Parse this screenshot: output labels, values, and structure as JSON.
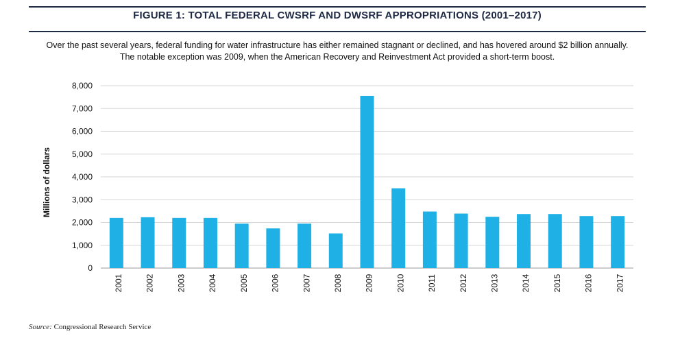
{
  "header": {
    "title": "FIGURE 1: TOTAL FEDERAL CWSRF AND DWSRF APPROPRIATIONS (2001–2017)",
    "subtitle_line1": "Over the past several years, federal funding for water infrastructure has either remained stagnant or declined, and has hovered around $2 billion annually.",
    "subtitle_line2": "The notable exception was 2009, when the American Recovery and Reinvestment Act provided a short-term boost."
  },
  "footer": {
    "source_label": "Source:",
    "source_text": "Congressional Research Service"
  },
  "colors": {
    "bar": "#1fb1e6",
    "grid": "#d6d6d6",
    "rule": "#1f2a44"
  },
  "chart_data": {
    "type": "bar",
    "title": "FIGURE 1: TOTAL FEDERAL CWSRF AND DWSRF APPROPRIATIONS (2001–2017)",
    "xlabel": "",
    "ylabel": "Millions of dollars",
    "ylim": [
      0,
      8000
    ],
    "yticks": [
      0,
      1000,
      2000,
      3000,
      4000,
      5000,
      6000,
      7000,
      8000
    ],
    "ytick_labels": [
      "0",
      "1,000",
      "2,000",
      "3,000",
      "4,000",
      "5,000",
      "6,000",
      "7,000",
      "8,000"
    ],
    "grid": true,
    "categories": [
      "2001",
      "2002",
      "2003",
      "2004",
      "2005",
      "2006",
      "2007",
      "2008",
      "2009",
      "2010",
      "2011",
      "2012",
      "2013",
      "2014",
      "2015",
      "2016",
      "2017"
    ],
    "values": [
      2200,
      2230,
      2200,
      2200,
      1950,
      1740,
      1950,
      1520,
      7550,
      3500,
      2480,
      2390,
      2250,
      2370,
      2370,
      2280,
      2280
    ]
  }
}
